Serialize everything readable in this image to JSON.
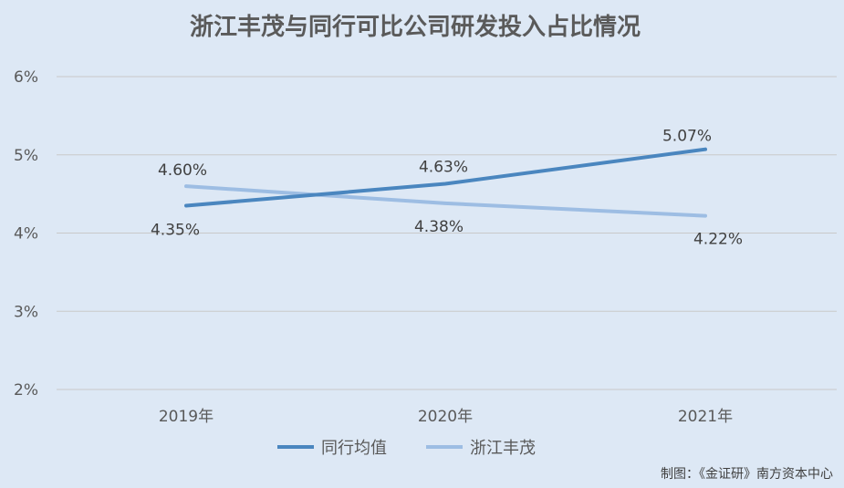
{
  "chart_data": {
    "type": "line",
    "title": "浙江丰茂与同行可比公司研发投入占比情况",
    "categories": [
      "2019年",
      "2020年",
      "2021年"
    ],
    "series": [
      {
        "name": "同行均值",
        "values": [
          4.35,
          4.63,
          5.07
        ],
        "labels": [
          "4.35%",
          "4.63%",
          "5.07%"
        ],
        "color": "#4a86bf"
      },
      {
        "name": "浙江丰茂",
        "values": [
          4.6,
          4.38,
          4.22
        ],
        "labels": [
          "4.60%",
          "4.38%",
          "4.22%"
        ],
        "color": "#9dbde3"
      }
    ],
    "yticks": [
      "6%",
      "5%",
      "4%",
      "3%",
      "2%"
    ],
    "ylim": [
      2,
      6
    ],
    "grid": true,
    "legend_position": "bottom",
    "credit": "制图：《金证研》南方资本中心"
  }
}
